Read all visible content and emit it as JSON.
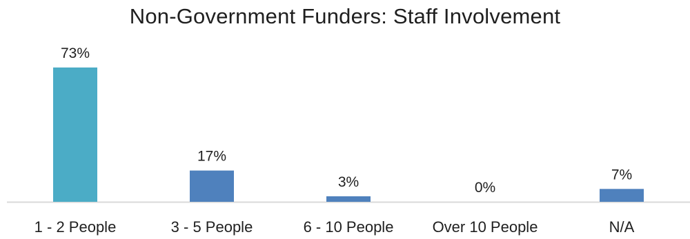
{
  "chart_data": {
    "type": "bar",
    "title": "Non-Government Funders: Staff Involvement",
    "categories": [
      "1 - 2 People",
      "3 - 5 People",
      "6 - 10 People",
      "Over 10 People",
      "N/A"
    ],
    "values": [
      73,
      17,
      3,
      0,
      7
    ],
    "data_labels": [
      "73%",
      "17%",
      "3%",
      "0%",
      "7%"
    ],
    "value_unit": "%",
    "ylim": [
      0,
      73
    ],
    "grid": false,
    "legend": "none",
    "colors": {
      "highlight": "#4BACC6",
      "default": "#4F81BD",
      "baseline": "#D9D9D9"
    },
    "highlight_index": 0
  }
}
